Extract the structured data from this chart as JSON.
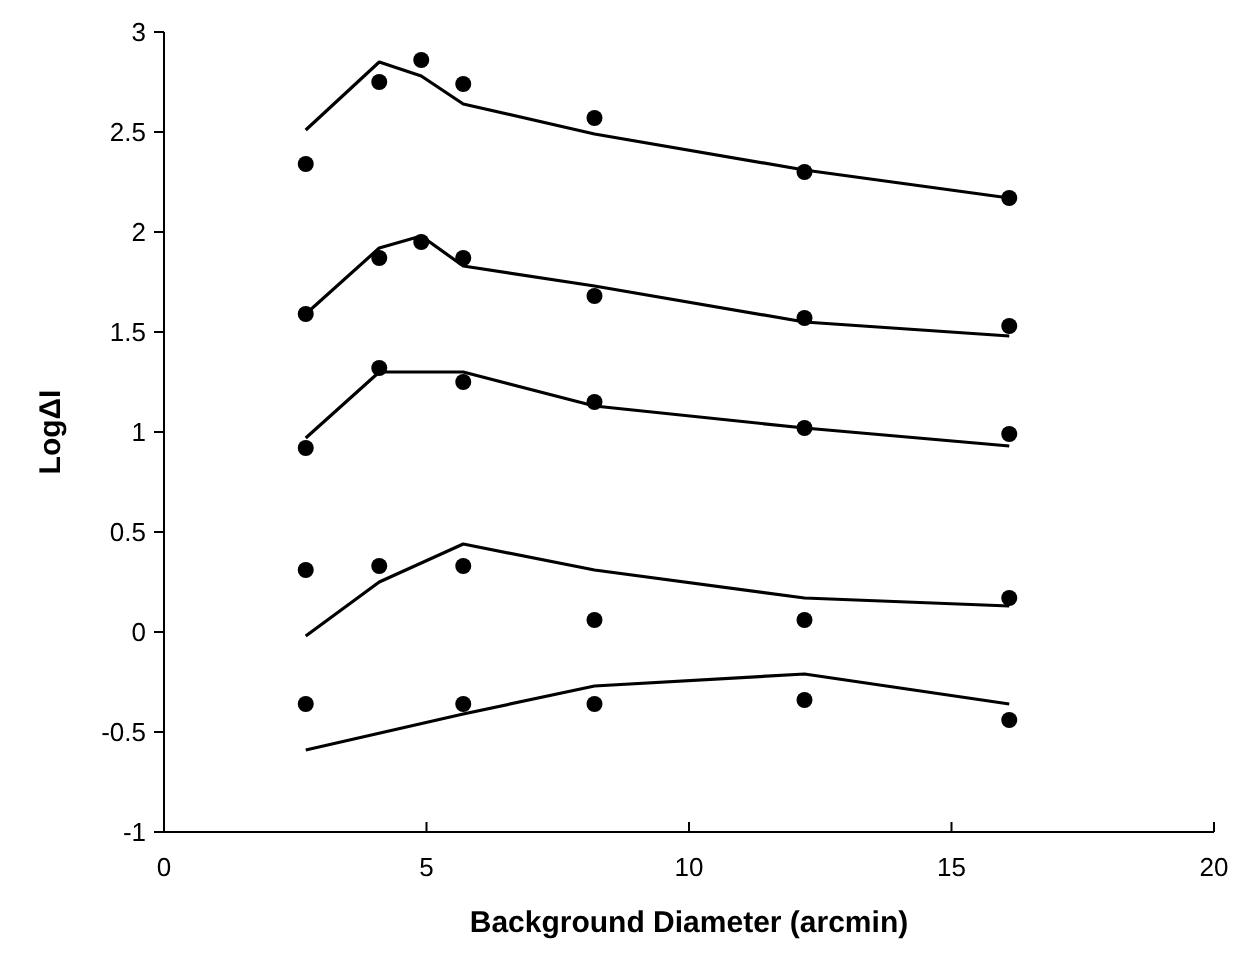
{
  "chart_data": {
    "type": "line",
    "xlabel": "Background Diameter (arcmin)",
    "ylabel": "LogΔI",
    "xlim": [
      0,
      20
    ],
    "xticks": [
      0,
      5,
      10,
      15,
      20
    ],
    "ylim": [
      -1,
      3
    ],
    "yticks": [
      -1,
      -0.5,
      0,
      0.5,
      1,
      1.5,
      2,
      2.5,
      3
    ],
    "grid": false,
    "series": [
      {
        "type": "scatter",
        "marker": "circle",
        "color": "#000000",
        "x": [
          2.7,
          4.1,
          4.9,
          5.7,
          8.2,
          12.2,
          16.1
        ],
        "values": [
          2.34,
          2.75,
          2.86,
          2.74,
          2.57,
          2.3,
          2.17
        ]
      },
      {
        "marker": "none",
        "color": "#000000",
        "x": [
          2.7,
          4.1,
          4.9,
          5.7,
          8.2,
          12.2,
          16.1
        ],
        "values": [
          2.51,
          2.85,
          2.78,
          2.64,
          2.49,
          2.31,
          2.17
        ]
      },
      {
        "type": "scatter",
        "marker": "circle",
        "color": "#000000",
        "x": [
          2.7,
          4.1,
          4.9,
          5.7,
          8.2,
          12.2,
          16.1
        ],
        "values": [
          1.59,
          1.87,
          1.95,
          1.87,
          1.68,
          1.57,
          1.53
        ]
      },
      {
        "marker": "none",
        "color": "#000000",
        "x": [
          2.7,
          4.1,
          4.9,
          5.7,
          8.2,
          12.2,
          16.1
        ],
        "values": [
          1.59,
          1.92,
          1.98,
          1.83,
          1.73,
          1.55,
          1.48
        ]
      },
      {
        "type": "scatter",
        "marker": "circle",
        "color": "#000000",
        "x": [
          2.7,
          4.1,
          5.7,
          8.2,
          12.2,
          16.1
        ],
        "values": [
          0.92,
          1.32,
          1.25,
          1.15,
          1.02,
          0.99
        ]
      },
      {
        "marker": "none",
        "color": "#000000",
        "x": [
          2.7,
          4.1,
          5.7,
          8.2,
          12.2,
          16.1
        ],
        "values": [
          0.97,
          1.3,
          1.3,
          1.13,
          1.02,
          0.93
        ]
      },
      {
        "type": "scatter",
        "marker": "circle",
        "color": "#000000",
        "x": [
          2.7,
          4.1,
          5.7,
          8.2,
          12.2,
          16.1
        ],
        "values": [
          0.31,
          0.33,
          0.33,
          0.06,
          0.06,
          0.17
        ]
      },
      {
        "marker": "none",
        "color": "#000000",
        "x": [
          2.7,
          4.1,
          5.7,
          8.2,
          12.2,
          16.1
        ],
        "values": [
          -0.02,
          0.25,
          0.44,
          0.31,
          0.17,
          0.13
        ]
      },
      {
        "type": "scatter",
        "marker": "circle",
        "color": "#000000",
        "x": [
          2.7,
          5.7,
          8.2,
          12.2,
          16.1
        ],
        "values": [
          -0.36,
          -0.36,
          -0.36,
          -0.34,
          -0.44
        ]
      },
      {
        "marker": "none",
        "color": "#000000",
        "x": [
          2.7,
          5.7,
          8.2,
          12.2,
          16.1
        ],
        "values": [
          -0.59,
          -0.41,
          -0.27,
          -0.21,
          -0.36
        ]
      }
    ]
  }
}
